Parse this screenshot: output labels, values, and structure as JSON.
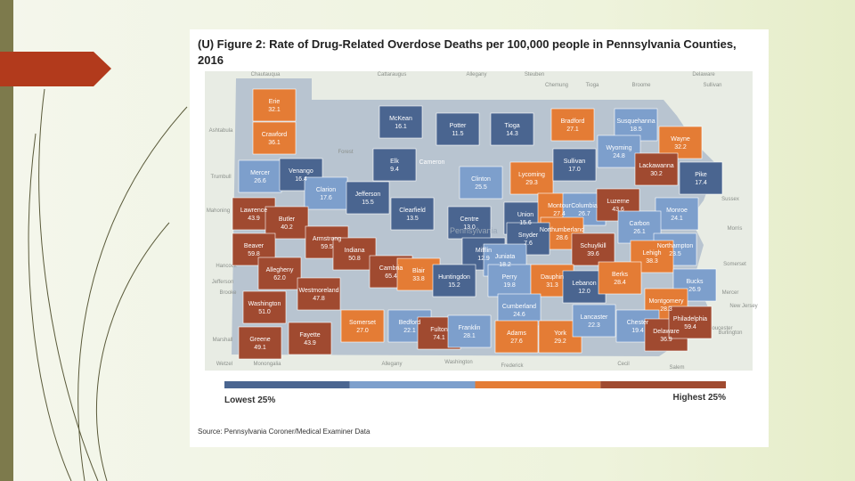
{
  "figure": {
    "title_lines": [
      "(U) Figure 2: Rate of Drug-Related Overdose Deaths per 100,000 people in Pennsylvania Counties,",
      "2016"
    ],
    "legend": {
      "lowest": "Lowest 25%",
      "highest": "Highest 25%",
      "colors": [
        "#4a6590",
        "#7d9fcc",
        "#e47c35",
        "#a04a30"
      ]
    },
    "source": "Source: Pennsylvania Coroner/Medical Examiner Data",
    "state_label": "Pennsylvania",
    "places": [
      "Chautauqua",
      "Cattaraugus",
      "Allegany",
      "Steuben",
      "Chemung",
      "Tioga",
      "Broome",
      "Delaware",
      "Sullivan",
      "Ashtabula",
      "Trumbull",
      "Mahoning",
      "Forest",
      "Hancock",
      "Jefferson",
      "Brooke",
      "Marshall",
      "Wetzel",
      "Monongalia",
      "Allegany",
      "Washington",
      "Frederick",
      "Cecil",
      "Salem",
      "Gloucester",
      "Burlington",
      "Mercer",
      "Somerset",
      "Morris",
      "Sussex",
      "New Jersey"
    ],
    "counties": [
      {
        "name": "Erie",
        "value": "32.1",
        "quartile": 2
      },
      {
        "name": "Crawford",
        "value": "36.1",
        "quartile": 2
      },
      {
        "name": "Mercer",
        "value": "26.6",
        "quartile": 1
      },
      {
        "name": "Venango",
        "value": "16.4",
        "quartile": 0
      },
      {
        "name": "Clarion",
        "value": "17.6",
        "quartile": 1
      },
      {
        "name": "Lawrence",
        "value": "43.9",
        "quartile": 3
      },
      {
        "name": "Butler",
        "value": "40.2",
        "quartile": 3
      },
      {
        "name": "Beaver",
        "value": "59.8",
        "quartile": 3
      },
      {
        "name": "Armstrong",
        "value": "59.5",
        "quartile": 3
      },
      {
        "name": "Indiana",
        "value": "50.8",
        "quartile": 3
      },
      {
        "name": "Allegheny",
        "value": "62.0",
        "quartile": 3
      },
      {
        "name": "Westmoreland",
        "value": "47.8",
        "quartile": 3
      },
      {
        "name": "Washington",
        "value": "51.0",
        "quartile": 3
      },
      {
        "name": "Greene",
        "value": "49.1",
        "quartile": 3
      },
      {
        "name": "Fayette",
        "value": "43.9",
        "quartile": 3
      },
      {
        "name": "McKean",
        "value": "16.1",
        "quartile": 0
      },
      {
        "name": "Potter",
        "value": "11.5",
        "quartile": 0
      },
      {
        "name": "Tioga",
        "value": "14.3",
        "quartile": 0
      },
      {
        "name": "Bradford",
        "value": "27.1",
        "quartile": 2
      },
      {
        "name": "Susquehanna",
        "value": "18.5",
        "quartile": 1
      },
      {
        "name": "Wayne",
        "value": "32.2",
        "quartile": 2
      },
      {
        "name": "Elk",
        "value": "9.4",
        "quartile": 0
      },
      {
        "name": "Cameron"
      },
      {
        "name": "Jefferson",
        "value": "15.5",
        "quartile": 0
      },
      {
        "name": "Clearfield",
        "value": "13.5",
        "quartile": 0
      },
      {
        "name": "Clinton",
        "value": "25.5",
        "quartile": 1
      },
      {
        "name": "Lycoming",
        "value": "29.3",
        "quartile": 2
      },
      {
        "name": "Sullivan",
        "value": "17.0",
        "quartile": 0
      },
      {
        "name": "Wyoming",
        "value": "24.8",
        "quartile": 1
      },
      {
        "name": "Lackawanna",
        "value": "30.2",
        "quartile": 3
      },
      {
        "name": "Pike",
        "value": "17.4",
        "quartile": 0
      },
      {
        "name": "Centre",
        "value": "13.0",
        "quartile": 0
      },
      {
        "name": "Union",
        "value": "15.6",
        "quartile": 0
      },
      {
        "name": "Montour",
        "value": "27.4",
        "quartile": 2
      },
      {
        "name": "Columbia",
        "value": "26.7",
        "quartile": 1
      },
      {
        "name": "Luzerne",
        "value": "43.6",
        "quartile": 3
      },
      {
        "name": "Monroe",
        "value": "24.1",
        "quartile": 1
      },
      {
        "name": "Carbon",
        "value": "26.1",
        "quartile": 1
      },
      {
        "name": "Northumberland",
        "value": "28.6",
        "quartile": 2
      },
      {
        "name": "Snyder",
        "value": "7.6",
        "quartile": 0
      },
      {
        "name": "Mifflin",
        "value": "12.9",
        "quartile": 0
      },
      {
        "name": "Juniata",
        "value": "18.2",
        "quartile": 1
      },
      {
        "name": "Schuylkill",
        "value": "39.6",
        "quartile": 3
      },
      {
        "name": "Northampton",
        "value": "23.5",
        "quartile": 1
      },
      {
        "name": "Lehigh",
        "value": "38.3",
        "quartile": 2
      },
      {
        "name": "Cambria",
        "value": "65.4",
        "quartile": 3
      },
      {
        "name": "Blair",
        "value": "33.8",
        "quartile": 2
      },
      {
        "name": "Huntingdon",
        "value": "15.2",
        "quartile": 0
      },
      {
        "name": "Perry",
        "value": "19.8",
        "quartile": 1
      },
      {
        "name": "Dauphin",
        "value": "31.3",
        "quartile": 2
      },
      {
        "name": "Lebanon",
        "value": "12.0",
        "quartile": 0
      },
      {
        "name": "Berks",
        "value": "28.4",
        "quartile": 2
      },
      {
        "name": "Bucks",
        "value": "26.9",
        "quartile": 1
      },
      {
        "name": "Montgomery",
        "value": "28.3",
        "quartile": 2
      },
      {
        "name": "Cumberland",
        "value": "24.6",
        "quartile": 1
      },
      {
        "name": "Somerset",
        "value": "27.0",
        "quartile": 2
      },
      {
        "name": "Bedford",
        "value": "22.1",
        "quartile": 1
      },
      {
        "name": "Fulton",
        "value": "74.1",
        "quartile": 3
      },
      {
        "name": "Franklin",
        "value": "28.1",
        "quartile": 1
      },
      {
        "name": "Adams",
        "value": "27.6",
        "quartile": 2
      },
      {
        "name": "York",
        "value": "29.2",
        "quartile": 2
      },
      {
        "name": "Lancaster",
        "value": "22.3",
        "quartile": 1
      },
      {
        "name": "Chester",
        "value": "19.4",
        "quartile": 1
      },
      {
        "name": "Delaware",
        "value": "36.9",
        "quartile": 3
      },
      {
        "name": "Philadelphia",
        "value": "59.4",
        "quartile": 3
      }
    ]
  }
}
